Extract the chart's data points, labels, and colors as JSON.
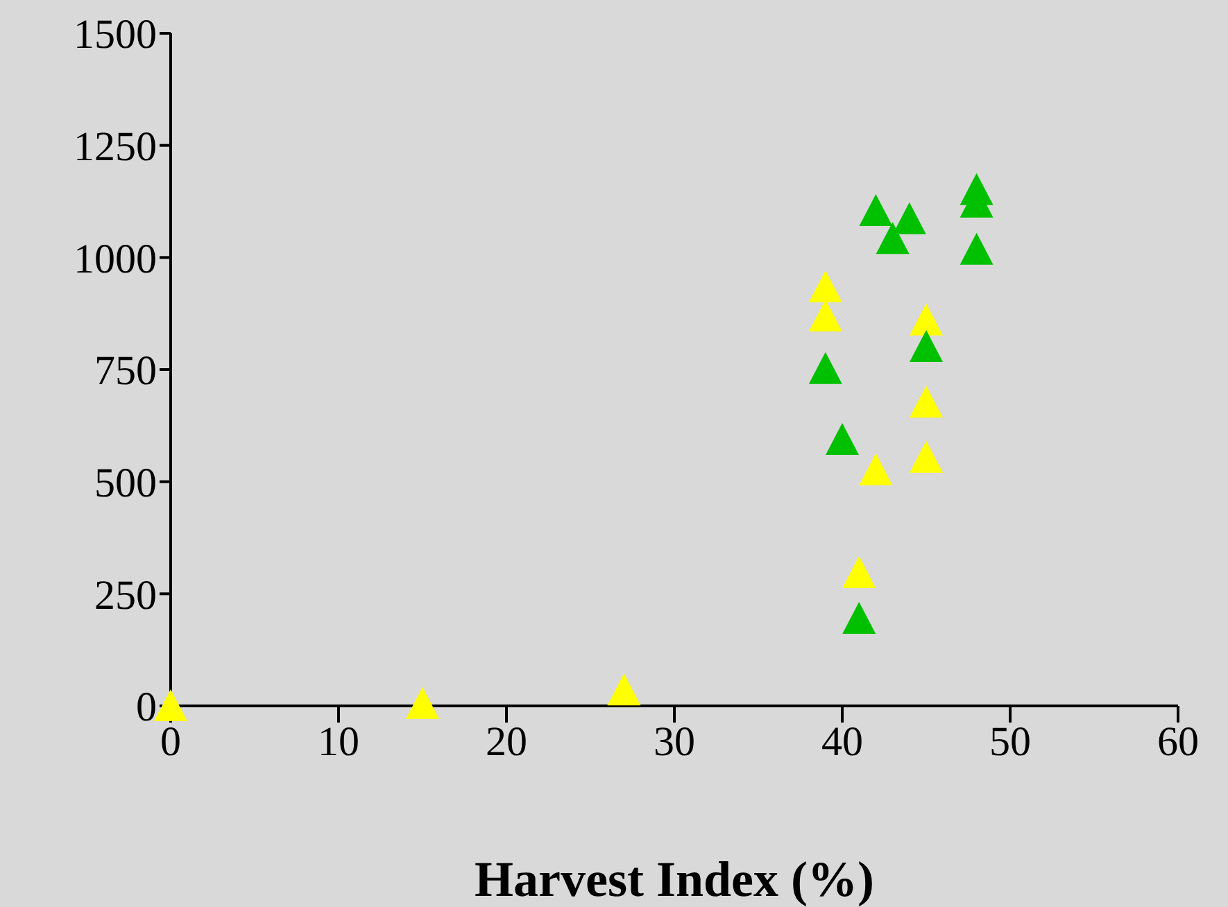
{
  "chart_data": {
    "type": "scatter",
    "xlabel": "Harvest Index (%)",
    "xlim": [
      0,
      60
    ],
    "xticks": [
      0,
      10,
      20,
      30,
      40,
      50,
      60
    ],
    "ylim": [
      0,
      1500
    ],
    "yticks": [
      0,
      250,
      500,
      750,
      1000,
      1250,
      1500
    ],
    "grid": false,
    "legend": false,
    "marker": "triangle",
    "series": [
      {
        "color": "#ffff00",
        "x": [
          0,
          15,
          27,
          39,
          39,
          41,
          42,
          45,
          45,
          45
        ],
        "values": [
          0,
          5,
          35,
          934,
          869,
          297,
          526,
          860,
          677,
          554
        ]
      },
      {
        "color": "#00c000",
        "x": [
          39,
          40,
          41,
          42,
          43,
          44,
          45,
          48,
          48,
          48
        ],
        "values": [
          752,
          594,
          195,
          1104,
          1042,
          1086,
          801,
          1151,
          1123,
          1018
        ]
      }
    ]
  }
}
